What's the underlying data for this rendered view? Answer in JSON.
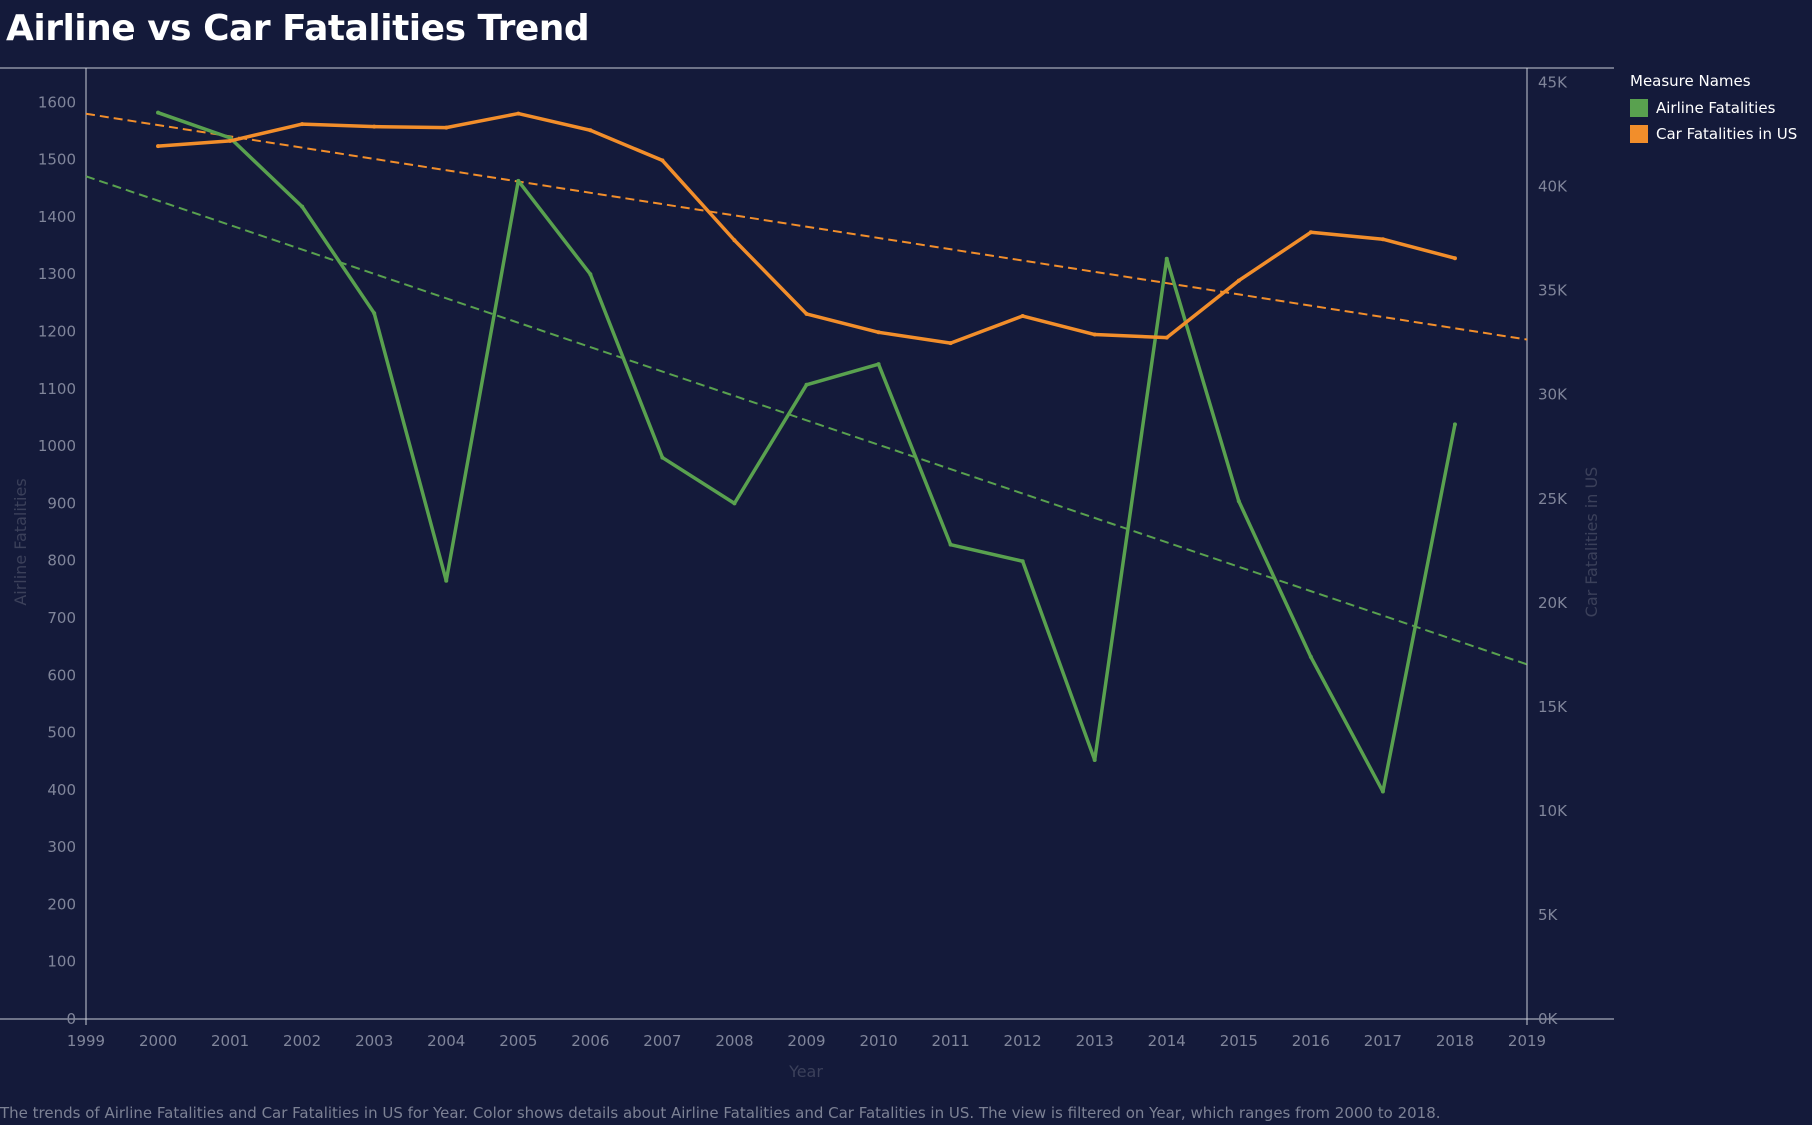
{
  "title": "Airline vs Car Fatalities Trend",
  "caption": "The trends of Airline Fatalities and Car Fatalities in US for Year.  Color shows details about Airline Fatalities and Car Fatalities in US. The view is filtered on Year, which ranges from 2000 to 2018.",
  "legend": {
    "title": "Measure Names",
    "items": [
      {
        "label": "Airline Fatalities",
        "color": "#59a14f"
      },
      {
        "label": "Car Fatalities in US",
        "color": "#f28e2b"
      }
    ]
  },
  "colors": {
    "background": "#141a3a",
    "axis_line": "#c9ccd6",
    "tick_label": "#80859a",
    "axis_title": "#3b405a"
  },
  "chart_data": {
    "type": "line",
    "xlabel": "Year",
    "ylabel_left": "Airline Fatalities",
    "ylabel_right": "Car Fatalities in US",
    "xlim": [
      1999,
      2019
    ],
    "x_ticks": [
      "1999",
      "2000",
      "2001",
      "2002",
      "2003",
      "2004",
      "2005",
      "2006",
      "2007",
      "2008",
      "2009",
      "2010",
      "2011",
      "2012",
      "2013",
      "2014",
      "2015",
      "2016",
      "2017",
      "2018",
      "2019"
    ],
    "ylim_left": [
      0,
      1660
    ],
    "y_ticks_left": [
      "0",
      "100",
      "200",
      "300",
      "400",
      "500",
      "600",
      "700",
      "800",
      "900",
      "1000",
      "1100",
      "1200",
      "1300",
      "1400",
      "1500",
      "1600"
    ],
    "ylim_right": [
      0,
      45700
    ],
    "y_ticks_right": [
      "0K",
      "5K",
      "10K",
      "15K",
      "20K",
      "25K",
      "30K",
      "35K",
      "40K",
      "45K"
    ],
    "grid": false,
    "legend_position": "right",
    "x": [
      2000,
      2001,
      2002,
      2003,
      2004,
      2005,
      2006,
      2007,
      2008,
      2009,
      2010,
      2011,
      2012,
      2013,
      2014,
      2015,
      2016,
      2017,
      2018
    ],
    "series": [
      {
        "name": "Airline Fatalities",
        "axis": "left",
        "color": "#59a14f",
        "values": [
          1582,
          1538,
          1418,
          1232,
          765,
          1463,
          1300,
          980,
          900,
          1107,
          1143,
          828,
          799,
          452,
          1327,
          904,
          632,
          397,
          1038
        ],
        "trend_line": {
          "style": "dashed",
          "from": [
            1999,
            1471
          ],
          "to": [
            2019,
            619
          ]
        }
      },
      {
        "name": "Car Fatalities in US",
        "axis": "right",
        "color": "#f28e2b",
        "values": [
          41945,
          42196,
          43005,
          42884,
          42836,
          43510,
          42708,
          41259,
          37423,
          33883,
          32999,
          32479,
          33782,
          32893,
          32744,
          35484,
          37806,
          37473,
          36560
        ],
        "trend_line": {
          "style": "dashed",
          "from": [
            1999,
            43500
          ],
          "to": [
            2019,
            32650
          ]
        }
      }
    ]
  }
}
